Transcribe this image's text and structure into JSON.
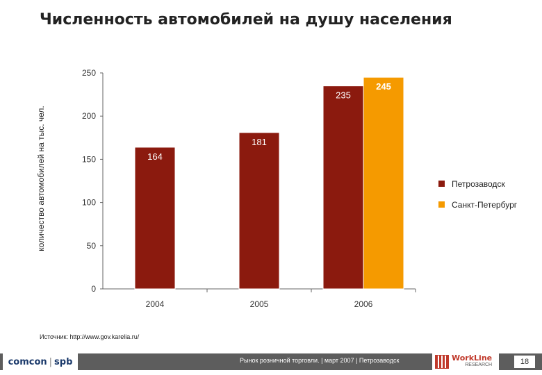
{
  "title": "Численность автомобилей на душу населения",
  "source": "Источник: http://www.gov.karelia.ru/",
  "footer": {
    "left_logo_a": "comcon",
    "left_logo_b": "spb",
    "caption": "Рынок розничной торговли. | март 2007 | Петрозаводск",
    "right_logo_top": "WorkLine",
    "right_logo_bottom": "RESEARCH",
    "page_number": "18"
  },
  "colors": {
    "petrozavodsk": "#8b1a0e",
    "spb": "#f59a00",
    "axis": "#666666"
  },
  "chart_data": {
    "type": "bar",
    "ylabel": "количество автомобилей на тыс. чел.",
    "categories": [
      "2004",
      "2005",
      "2006"
    ],
    "ylim": [
      0,
      250
    ],
    "yticks": [
      0,
      50,
      100,
      150,
      200,
      250
    ],
    "series": [
      {
        "name": "Петрозаводск",
        "values": [
          164,
          181,
          235
        ]
      },
      {
        "name": "Санкт-Петербург",
        "values": [
          null,
          null,
          245
        ]
      }
    ],
    "legend_position": "right"
  }
}
